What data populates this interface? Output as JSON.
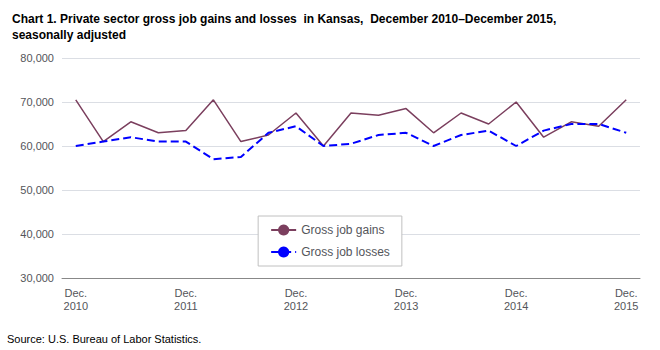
{
  "chart_data": {
    "type": "line",
    "title": "Chart 1. Private sector gross job gains and losses  in Kansas,  December 2010–December 2015,\nseasonally adjusted",
    "annotations": [
      "Source: U.S. Bureau of Labor Statistics."
    ],
    "categories": [
      "Dec.\n2010",
      null,
      null,
      null,
      "Dec.\n2011",
      null,
      null,
      null,
      "Dec.\n2012",
      null,
      null,
      null,
      "Dec.\n2013",
      null,
      null,
      null,
      "Dec.\n2014",
      null,
      null,
      null,
      "Dec.\n2015"
    ],
    "series": [
      {
        "name": "Gross job gains",
        "color": "#7B3F5E",
        "line_style": "solid",
        "values": [
          70500,
          61000,
          65500,
          63000,
          63500,
          70500,
          61000,
          62500,
          67500,
          60000,
          67500,
          67000,
          68500,
          63000,
          67500,
          65000,
          70000,
          62000,
          65500,
          64500,
          70500
        ]
      },
      {
        "name": "Gross job losses",
        "color": "#0000FF",
        "line_style": "dashed",
        "values": [
          60000,
          61000,
          62000,
          61000,
          61000,
          57000,
          57500,
          63000,
          64500,
          60000,
          60500,
          62500,
          63000,
          60000,
          62500,
          63500,
          60000,
          63500,
          65000,
          65000,
          63000
        ]
      }
    ],
    "ylim": [
      30000,
      80000
    ],
    "yticks": [
      {
        "value": 30000,
        "label": "30,000"
      },
      {
        "value": 40000,
        "label": "40,000"
      },
      {
        "value": 50000,
        "label": "50,000"
      },
      {
        "value": 60000,
        "label": "60,000"
      },
      {
        "value": 70000,
        "label": "70,000"
      },
      {
        "value": 80000,
        "label": "80,000"
      }
    ],
    "grid": true,
    "legend": "lower center"
  }
}
